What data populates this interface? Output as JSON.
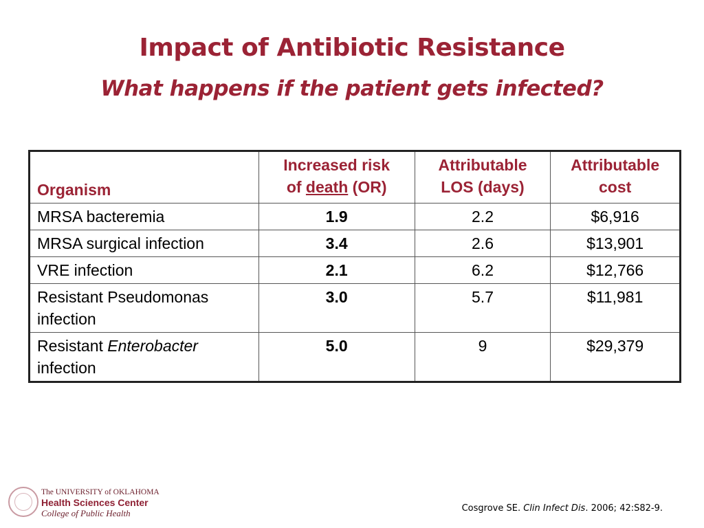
{
  "slide": {
    "title": "Impact of Antibiotic Resistance",
    "subtitle": "What happens if the patient gets infected?"
  },
  "table": {
    "headers": {
      "organism": "Organism",
      "risk_line1": "Increased risk",
      "risk_of": "of ",
      "risk_death": "death",
      "risk_or": " (OR)",
      "los_line1": "Attributable",
      "los_line2": "LOS (days)",
      "cost_line1": "Attributable",
      "cost_line2": "cost"
    },
    "rows": [
      {
        "organism": "MRSA bacteremia",
        "risk": "1.9",
        "los": "2.2",
        "cost": "$6,916"
      },
      {
        "organism": "MRSA surgical infection",
        "risk": "3.4",
        "los": "2.6",
        "cost": "$13,901"
      },
      {
        "organism": "VRE infection",
        "risk": "2.1",
        "los": "6.2",
        "cost": "$12,766"
      },
      {
        "organism_line1": "Resistant Pseudomonas",
        "organism_line2": "infection",
        "risk": "3.0",
        "los": "5.7",
        "cost": "$11,981"
      },
      {
        "organism_prefix": "Resistant ",
        "organism_italic": "Enterobacter",
        "organism_line2": "infection",
        "risk": "5.0",
        "los": "9",
        "cost": "$29,379"
      }
    ]
  },
  "logo": {
    "line1": "The UNIVERSITY of OKLAHOMA",
    "line2": "Health Sciences Center",
    "line3": "College of Public Health"
  },
  "citation": {
    "authors": "Cosgrove SE. ",
    "journal": "Clin Infect Dis",
    "details": ". 2006; 42:S82-9."
  }
}
